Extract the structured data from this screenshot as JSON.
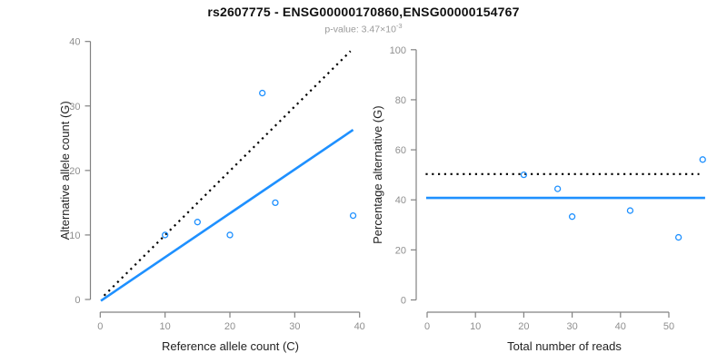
{
  "header": {
    "title": "rs2607775 - ENSG00000170860,ENSG00000154767",
    "subtitle_prefix": "p-value: 3.47×10",
    "subtitle_exponent": "-3"
  },
  "colors": {
    "accent_blue": "#1E90FF",
    "dotted_line": "#000000",
    "axis_line": "#828282",
    "tick_label": "#8f8f8f",
    "axis_title": "#222222",
    "subtitle_gray": "#999999"
  },
  "chart_data": [
    {
      "type": "scatter",
      "name": "allele-count-plot",
      "xlabel": "Reference allele count (C)",
      "ylabel": "Alternative allele count (G)",
      "xlim": [
        0,
        40
      ],
      "ylim": [
        0,
        40
      ],
      "xticks": [
        0,
        10,
        20,
        30,
        40
      ],
      "yticks": [
        0,
        10,
        20,
        30,
        40
      ],
      "grid": false,
      "points": [
        [
          10,
          10
        ],
        [
          15,
          12
        ],
        [
          20,
          10
        ],
        [
          25,
          32
        ],
        [
          27,
          15
        ],
        [
          39,
          13
        ]
      ],
      "lines": [
        {
          "name": "identity-line",
          "style": "dotted",
          "color": "#000000",
          "from": [
            0.6,
            0.6
          ],
          "to": [
            38.6,
            38.5
          ]
        },
        {
          "name": "fit-line",
          "style": "solid",
          "color": "#1E90FF",
          "from": [
            0.1,
            -0.2
          ],
          "to": [
            39,
            26.3
          ]
        }
      ]
    },
    {
      "type": "scatter",
      "name": "percentage-plot",
      "xlabel": "Total number of reads",
      "ylabel": "Percentage alternative (G)",
      "xlim": [
        0,
        50
      ],
      "ylim": [
        0,
        100
      ],
      "xticks": [
        0,
        10,
        20,
        30,
        40,
        50
      ],
      "yticks": [
        0,
        20,
        40,
        60,
        80,
        100
      ],
      "grid": false,
      "points": [
        [
          20,
          50
        ],
        [
          27,
          44.4
        ],
        [
          30,
          33.3
        ],
        [
          42,
          35.7
        ],
        [
          52,
          25
        ],
        [
          57,
          56.1
        ]
      ],
      "lines": [
        {
          "name": "fifty-percent-line",
          "style": "dotted",
          "color": "#000000",
          "from": [
            -0.3,
            50.3
          ],
          "to": [
            56.3,
            50.3
          ]
        },
        {
          "name": "mean-percentage-line",
          "style": "solid",
          "color": "#1E90FF",
          "from": [
            -0.2,
            40.8
          ],
          "to": [
            57.5,
            40.8
          ]
        }
      ]
    }
  ]
}
